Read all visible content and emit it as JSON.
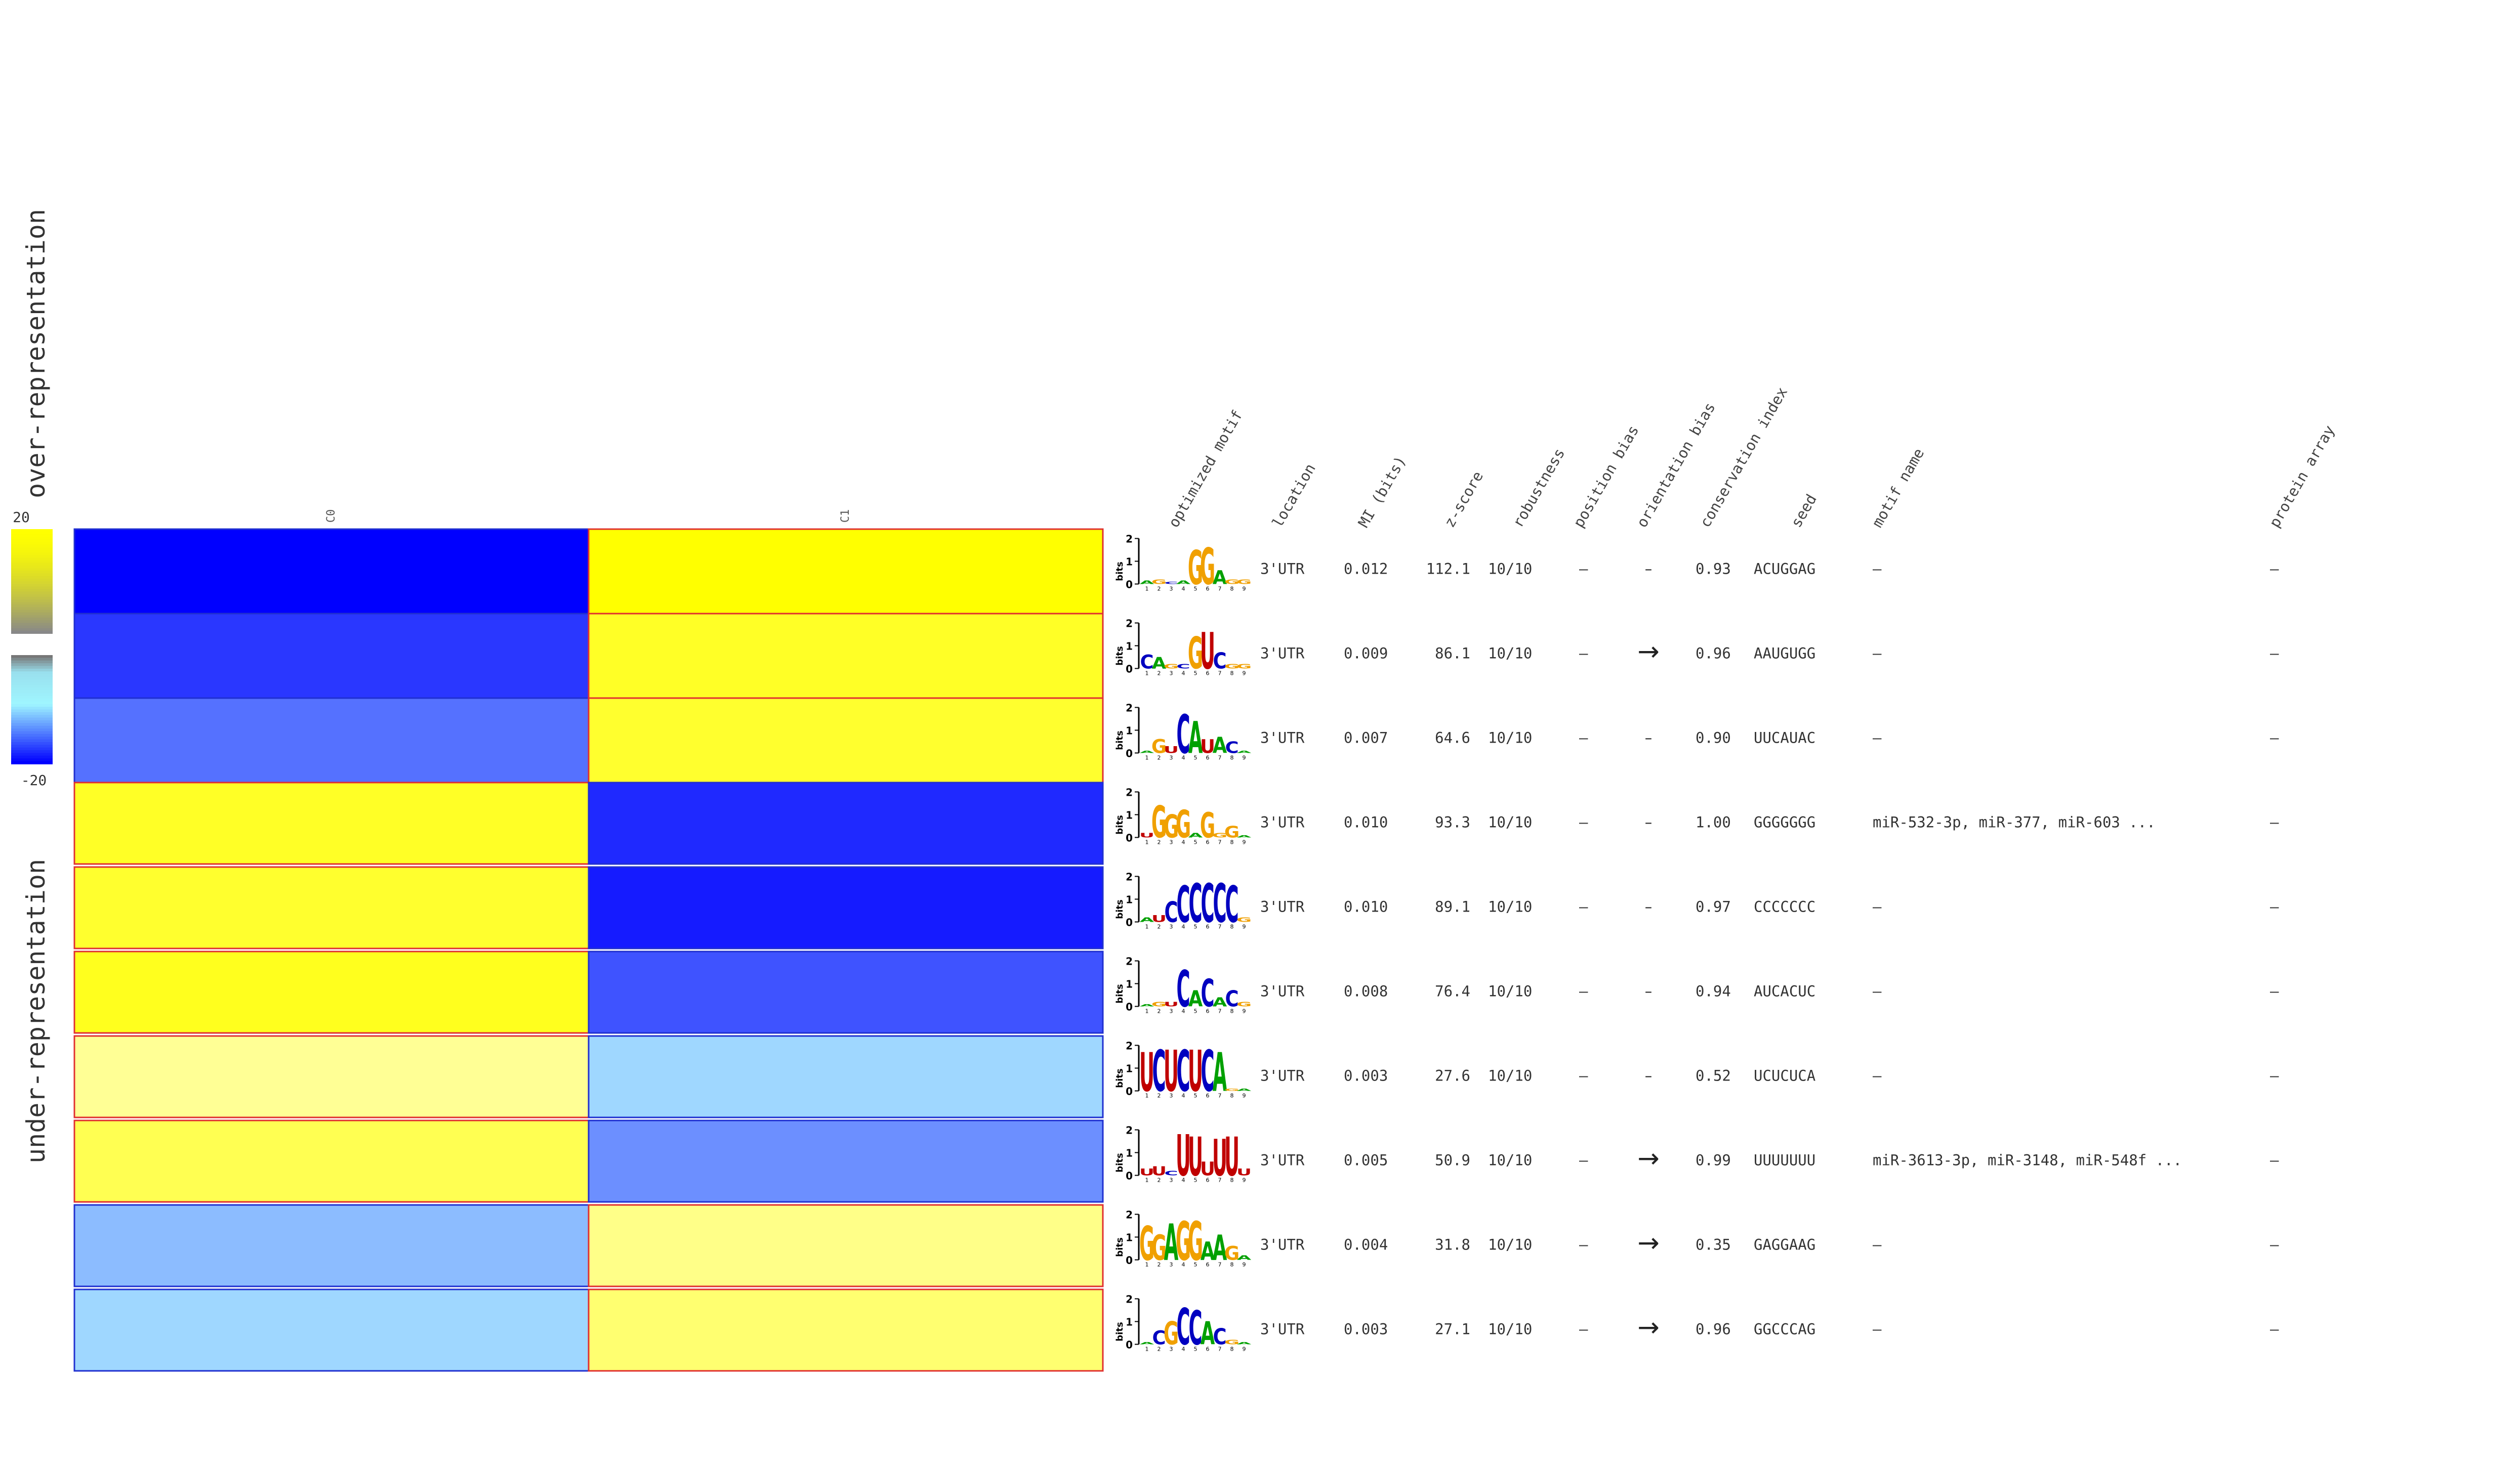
{
  "chart_data": {
    "type": "heatmap",
    "color_scale": {
      "max_label": "20",
      "min_label": "-20",
      "over_label": "over-representation",
      "under_label": "under-representation",
      "high_color": "#ffff00",
      "mid_color": "#888888",
      "low_color": "#0000ff"
    },
    "columns": [
      "C0",
      "C1"
    ],
    "table_headers": [
      "optimized motif",
      "location",
      "MI (bits)",
      "z-score",
      "robustness",
      "position bias",
      "orientation bias",
      "conservation index",
      "seed",
      "motif name",
      "protein array"
    ],
    "rows": [
      {
        "cells": [
          -20,
          20
        ],
        "location": "3'UTR",
        "mi": "0.012",
        "z": "112.1",
        "robustness": "10/10",
        "position_bias": "–",
        "orientation_bias": "–",
        "conservation": "0.93",
        "seed": "ACUGGAG",
        "motif_name": "–",
        "protein_array": "–"
      },
      {
        "cells": [
          -16,
          15
        ],
        "location": "3'UTR",
        "mi": "0.009",
        "z": "86.1",
        "robustness": "10/10",
        "position_bias": "–",
        "orientation_bias": "→",
        "conservation": "0.96",
        "seed": "AAUGUGG",
        "motif_name": "–",
        "protein_array": "–"
      },
      {
        "cells": [
          -12,
          14
        ],
        "location": "3'UTR",
        "mi": "0.007",
        "z": "64.6",
        "robustness": "10/10",
        "position_bias": "–",
        "orientation_bias": "–",
        "conservation": "0.90",
        "seed": "UUCAUAC",
        "motif_name": "–",
        "protein_array": "–"
      },
      {
        "cells": [
          15,
          -17
        ],
        "location": "3'UTR",
        "mi": "0.010",
        "z": "93.3",
        "robustness": "10/10",
        "position_bias": "–",
        "orientation_bias": "–",
        "conservation": "1.00",
        "seed": "GGGGGGG",
        "motif_name": "miR-532-3p, miR-377, miR-603 ...",
        "protein_array": "–"
      },
      {
        "cells": [
          14,
          -18
        ],
        "location": "3'UTR",
        "mi": "0.010",
        "z": "89.1",
        "robustness": "10/10",
        "position_bias": "–",
        "orientation_bias": "–",
        "conservation": "0.97",
        "seed": "CCCCCCC",
        "motif_name": "–",
        "protein_array": "–"
      },
      {
        "cells": [
          16,
          -14
        ],
        "location": "3'UTR",
        "mi": "0.008",
        "z": "76.4",
        "robustness": "10/10",
        "position_bias": "–",
        "orientation_bias": "–",
        "conservation": "0.94",
        "seed": "AUCACUC",
        "motif_name": "–",
        "protein_array": "–"
      },
      {
        "cells": [
          4,
          -3
        ],
        "location": "3'UTR",
        "mi": "0.003",
        "z": "27.6",
        "robustness": "10/10",
        "position_bias": "–",
        "orientation_bias": "–",
        "conservation": "0.52",
        "seed": "UCUCUCA",
        "motif_name": "–",
        "protein_array": "–"
      },
      {
        "cells": [
          10,
          -10
        ],
        "location": "3'UTR",
        "mi": "0.005",
        "z": "50.9",
        "robustness": "10/10",
        "position_bias": "–",
        "orientation_bias": "→",
        "conservation": "0.99",
        "seed": "UUUUUUU",
        "motif_name": "miR-3613-3p, miR-3148, miR-548f ...",
        "protein_array": "–"
      },
      {
        "cells": [
          -6,
          5
        ],
        "location": "3'UTR",
        "mi": "0.004",
        "z": "31.8",
        "robustness": "10/10",
        "position_bias": "–",
        "orientation_bias": "→",
        "conservation": "0.35",
        "seed": "GAGGAAG",
        "motif_name": "–",
        "protein_array": "–"
      },
      {
        "cells": [
          -3,
          7
        ],
        "location": "3'UTR",
        "mi": "0.003",
        "z": "27.1",
        "robustness": "10/10",
        "position_bias": "–",
        "orientation_bias": "→",
        "conservation": "0.96",
        "seed": "GGCCCAG",
        "motif_name": "–",
        "protein_array": "–"
      }
    ],
    "logos": [
      {
        "letters": [
          [
            "A",
            0.15
          ],
          [
            "G",
            0.2
          ],
          [
            "C",
            0.1
          ],
          [
            "A",
            0.15
          ],
          [
            "G",
            1.5
          ],
          [
            "G",
            1.6
          ],
          [
            "A",
            0.6
          ],
          [
            "G",
            0.2
          ],
          [
            "G",
            0.2
          ]
        ]
      },
      {
        "letters": [
          [
            "C",
            0.6
          ],
          [
            "A",
            0.5
          ],
          [
            "G",
            0.2
          ],
          [
            "C",
            0.2
          ],
          [
            "G",
            1.4
          ],
          [
            "U",
            1.6
          ],
          [
            "C",
            0.7
          ],
          [
            "G",
            0.2
          ],
          [
            "G",
            0.2
          ]
        ]
      },
      {
        "letters": [
          [
            "A",
            0.1
          ],
          [
            "G",
            0.6
          ],
          [
            "U",
            0.3
          ],
          [
            "C",
            1.7
          ],
          [
            "A",
            1.4
          ],
          [
            "U",
            0.6
          ],
          [
            "A",
            0.7
          ],
          [
            "C",
            0.5
          ],
          [
            "A",
            0.1
          ]
        ]
      },
      {
        "letters": [
          [
            "U",
            0.2
          ],
          [
            "G",
            1.4
          ],
          [
            "G",
            1.0
          ],
          [
            "G",
            1.2
          ],
          [
            "A",
            0.2
          ],
          [
            "G",
            1.1
          ],
          [
            "G",
            0.2
          ],
          [
            "G",
            0.5
          ],
          [
            "A",
            0.1
          ]
        ]
      },
      {
        "letters": [
          [
            "A",
            0.2
          ],
          [
            "U",
            0.3
          ],
          [
            "C",
            0.9
          ],
          [
            "C",
            1.6
          ],
          [
            "C",
            1.7
          ],
          [
            "C",
            1.7
          ],
          [
            "C",
            1.7
          ],
          [
            "C",
            1.6
          ],
          [
            "G",
            0.2
          ]
        ]
      },
      {
        "letters": [
          [
            "A",
            0.1
          ],
          [
            "G",
            0.2
          ],
          [
            "U",
            0.2
          ],
          [
            "C",
            1.6
          ],
          [
            "A",
            0.7
          ],
          [
            "C",
            1.2
          ],
          [
            "A",
            0.4
          ],
          [
            "C",
            0.7
          ],
          [
            "G",
            0.2
          ]
        ]
      },
      {
        "letters": [
          [
            "U",
            1.7
          ],
          [
            "C",
            1.8
          ],
          [
            "U",
            1.8
          ],
          [
            "C",
            1.8
          ],
          [
            "U",
            1.8
          ],
          [
            "C",
            1.8
          ],
          [
            "A",
            1.7
          ],
          [
            "G",
            0.1
          ],
          [
            "A",
            0.1
          ]
        ]
      },
      {
        "letters": [
          [
            "U",
            0.3
          ],
          [
            "U",
            0.4
          ],
          [
            "C",
            0.2
          ],
          [
            "U",
            1.8
          ],
          [
            "U",
            1.7
          ],
          [
            "U",
            0.6
          ],
          [
            "U",
            1.6
          ],
          [
            "U",
            1.7
          ],
          [
            "U",
            0.3
          ]
        ]
      },
      {
        "letters": [
          [
            "G",
            1.5
          ],
          [
            "G",
            1.1
          ],
          [
            "A",
            1.6
          ],
          [
            "G",
            1.7
          ],
          [
            "G",
            1.7
          ],
          [
            "A",
            0.8
          ],
          [
            "A",
            1.1
          ],
          [
            "G",
            0.6
          ],
          [
            "A",
            0.2
          ]
        ]
      },
      {
        "letters": [
          [
            "A",
            0.1
          ],
          [
            "C",
            0.6
          ],
          [
            "G",
            1.0
          ],
          [
            "C",
            1.6
          ],
          [
            "C",
            1.5
          ],
          [
            "A",
            1.0
          ],
          [
            "C",
            0.7
          ],
          [
            "G",
            0.2
          ],
          [
            "A",
            0.1
          ]
        ]
      }
    ],
    "logo_axis": {
      "ylabel": "bits",
      "ticks": [
        "2",
        "1",
        "0"
      ],
      "positions": [
        "1",
        "2",
        "3",
        "4",
        "5",
        "6",
        "7",
        "8",
        "9"
      ]
    }
  }
}
